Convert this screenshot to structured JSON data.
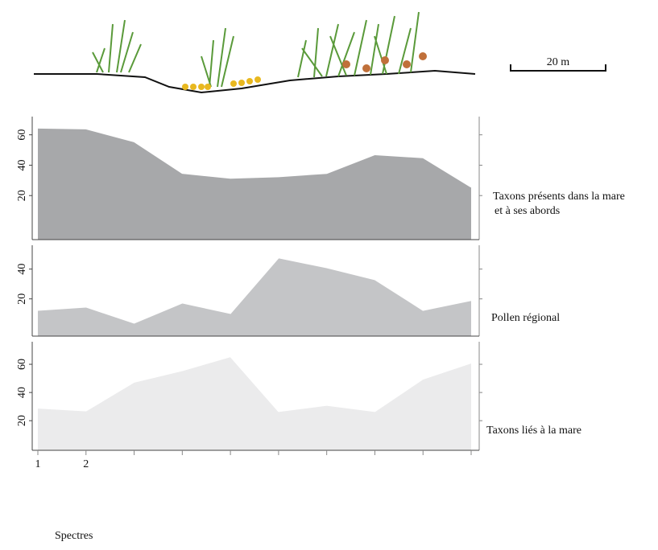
{
  "scale_label": "20 m",
  "x_axis_label": "Spectres",
  "chart_data": [
    {
      "type": "area",
      "label": "Taxons présents dans la mare et à ses abords",
      "color": "#a7a8aa",
      "values": [
        64.5,
        64,
        55.5,
        34.7,
        31.5,
        32.5,
        34.7,
        47,
        45,
        25.6
      ],
      "ylim": [
        -9,
        72
      ],
      "yticks": [
        20,
        40,
        60
      ]
    },
    {
      "type": "area",
      "label": "Pollen régional",
      "color": "#c4c5c7",
      "values": [
        12.4,
        14.6,
        3.8,
        17.3,
        10.3,
        47.6,
        41,
        33,
        12.4,
        19
      ],
      "ylim": [
        -5,
        56
      ],
      "yticks": [
        20,
        40
      ]
    },
    {
      "type": "area",
      "label": "Taxons liés à la mare",
      "color": "#ebebec",
      "categories": [
        "1",
        "2",
        null,
        null,
        null,
        null,
        null,
        null,
        null,
        null
      ],
      "values": [
        29,
        27,
        47.4,
        55.6,
        65.5,
        26.6,
        31,
        26.6,
        49.6,
        61
      ],
      "ylim": [
        -1,
        76
      ],
      "yticks": [
        20,
        40,
        60
      ]
    }
  ]
}
